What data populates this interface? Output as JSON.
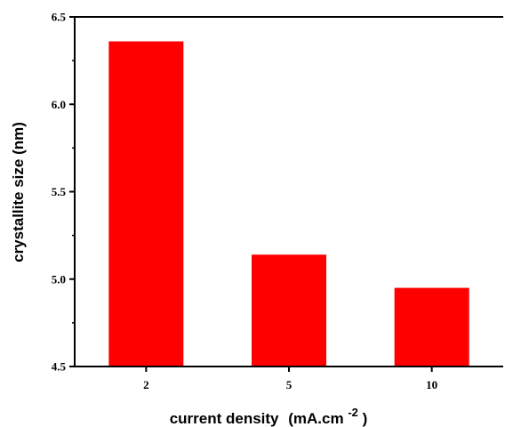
{
  "chart_data": {
    "type": "bar",
    "categories": [
      "2",
      "5",
      "10"
    ],
    "values": [
      6.36,
      5.14,
      4.95
    ],
    "xlabel": {
      "main": "current density",
      "unit_prefix": "(mA.cm",
      "unit_exponent": "-2",
      "unit_suffix": ")"
    },
    "ylabel": "crystallite size (nm)",
    "ylim": [
      4.5,
      6.5
    ],
    "yticks": [
      "4.5",
      "5.0",
      "5.5",
      "6.0",
      "6.5"
    ],
    "bar_color": "#ff0000",
    "grid": false,
    "legend": "none"
  }
}
